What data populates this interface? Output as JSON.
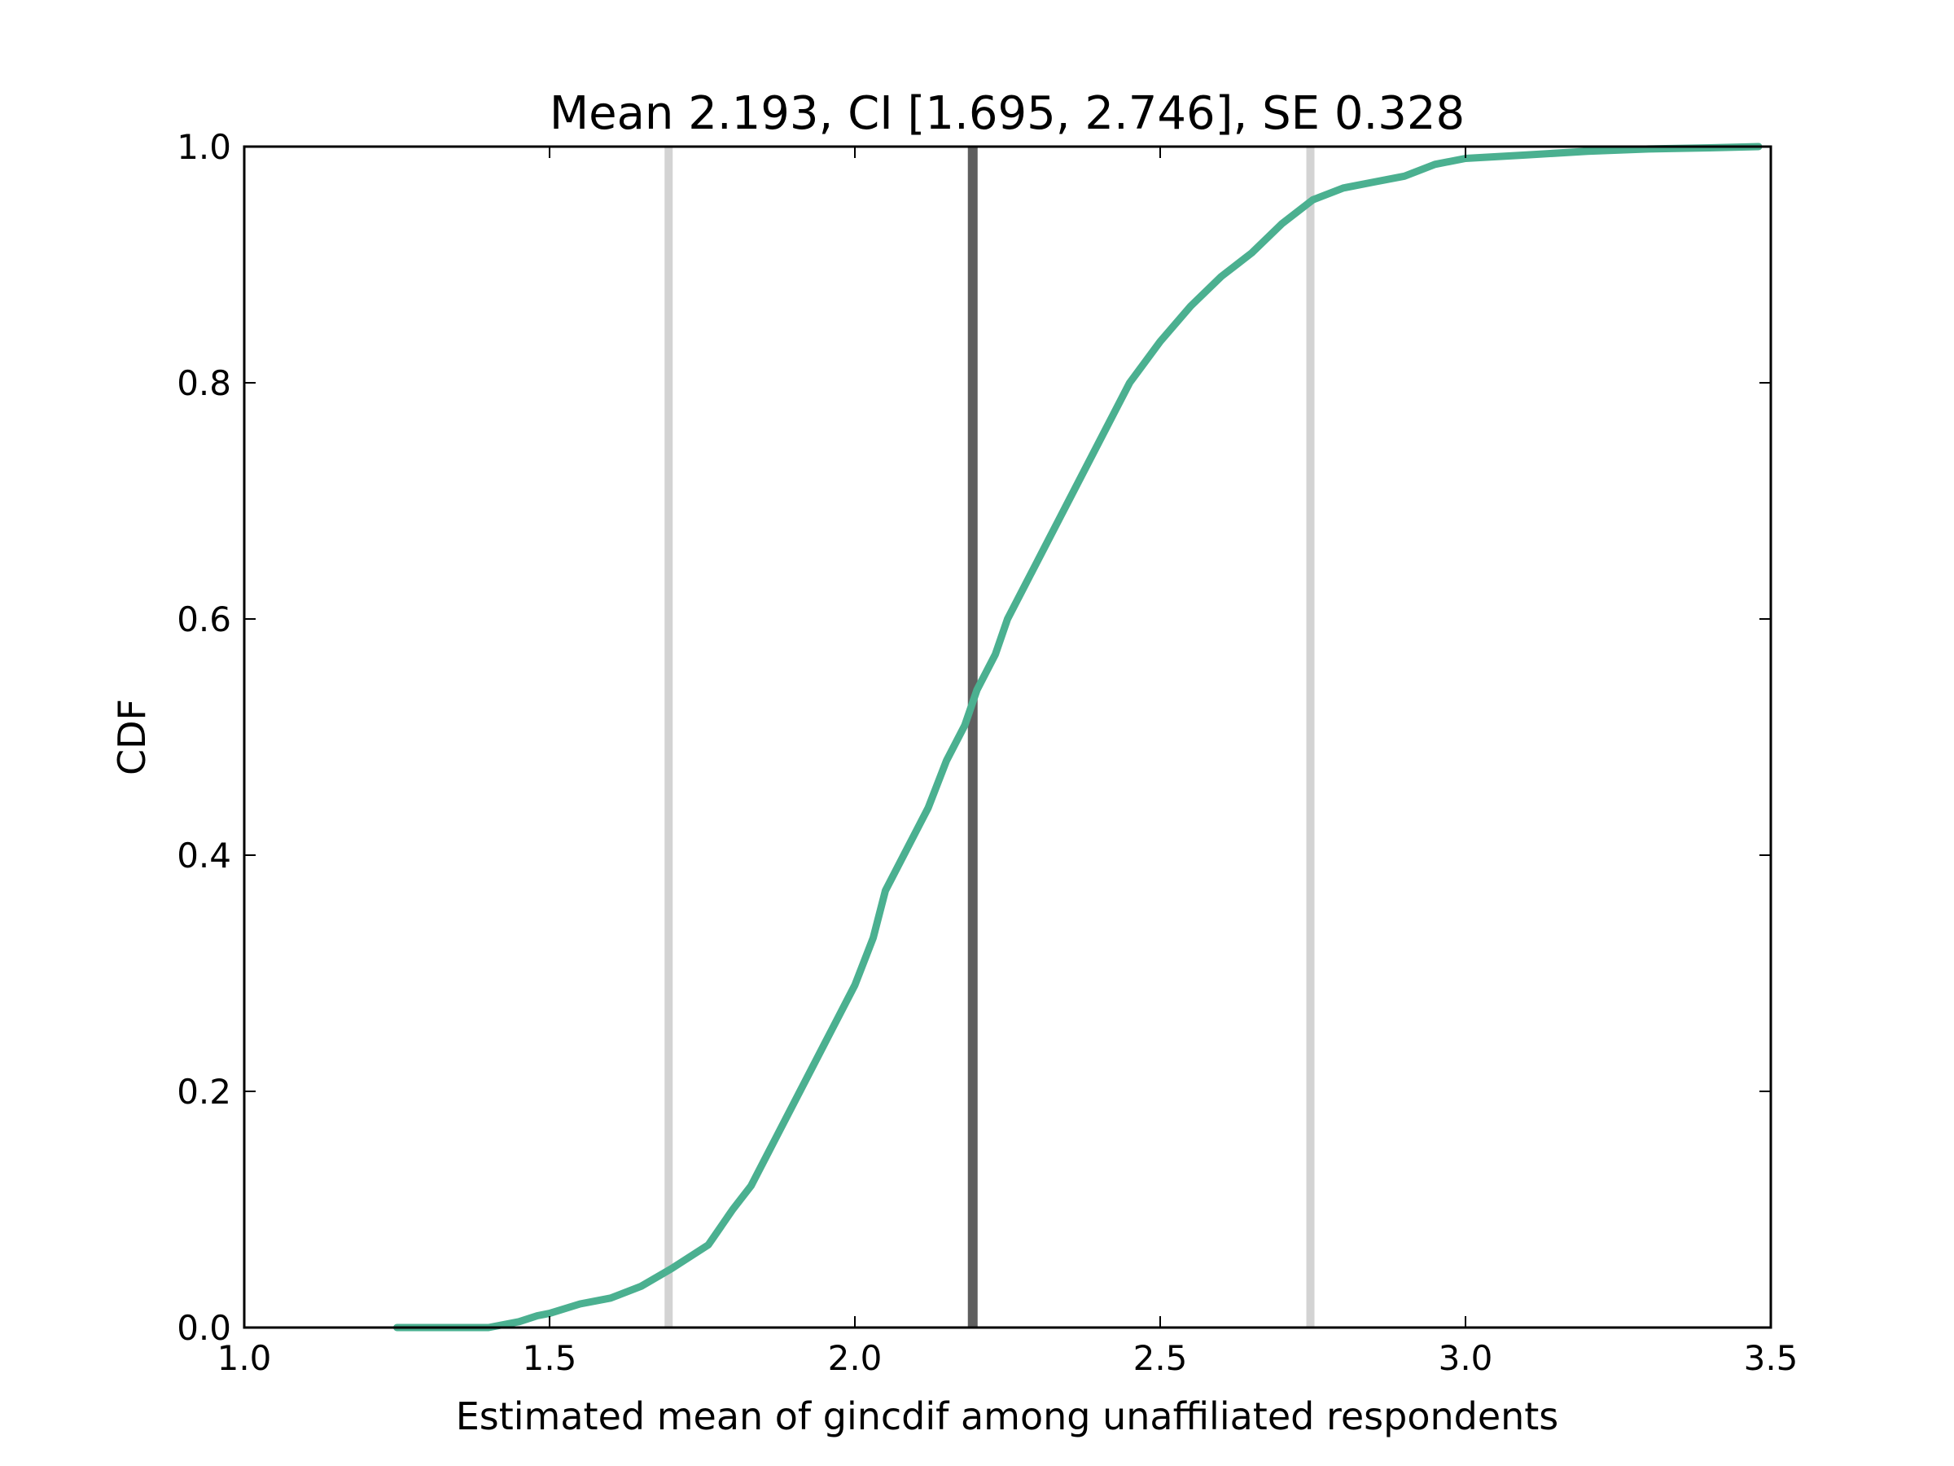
{
  "chart_data": {
    "type": "line",
    "title": "Mean 2.193, CI [1.695, 2.746], SE 0.328",
    "xlabel": "Estimated mean of gincdif among unaffiliated respondents",
    "ylabel": "CDF",
    "xlim": [
      1.0,
      3.5
    ],
    "ylim": [
      0.0,
      1.0
    ],
    "xticks": [
      "1.0",
      "1.5",
      "2.0",
      "2.5",
      "3.0",
      "3.5"
    ],
    "yticks": [
      "0.0",
      "0.2",
      "0.4",
      "0.6",
      "0.8",
      "1.0"
    ],
    "grid": false,
    "legend": "none",
    "reference_lines": [
      {
        "x": 1.695,
        "role": "ci-lower",
        "color": "#d3d3d3"
      },
      {
        "x": 2.193,
        "role": "mean",
        "color": "#5f5f5f"
      },
      {
        "x": 2.746,
        "role": "ci-upper",
        "color": "#d3d3d3"
      }
    ],
    "series": [
      {
        "color": "#4bb090",
        "x": [
          1.25,
          1.3,
          1.35,
          1.4,
          1.45,
          1.48,
          1.5,
          1.55,
          1.6,
          1.65,
          1.7,
          1.73,
          1.76,
          1.78,
          1.8,
          1.83,
          1.86,
          1.9,
          1.95,
          2.0,
          2.03,
          2.05,
          2.08,
          2.12,
          2.15,
          2.18,
          2.2,
          2.23,
          2.25,
          2.28,
          2.32,
          2.35,
          2.4,
          2.45,
          2.5,
          2.55,
          2.6,
          2.65,
          2.7,
          2.75,
          2.8,
          2.85,
          2.9,
          2.95,
          3.0,
          3.1,
          3.2,
          3.3,
          3.4,
          3.48
        ],
        "y": [
          0.0,
          0.0,
          0.0,
          0.0,
          0.005,
          0.01,
          0.012,
          0.02,
          0.025,
          0.035,
          0.05,
          0.06,
          0.07,
          0.085,
          0.1,
          0.12,
          0.15,
          0.19,
          0.24,
          0.29,
          0.33,
          0.37,
          0.4,
          0.44,
          0.48,
          0.51,
          0.54,
          0.57,
          0.6,
          0.63,
          0.67,
          0.7,
          0.75,
          0.8,
          0.835,
          0.865,
          0.89,
          0.91,
          0.935,
          0.955,
          0.965,
          0.97,
          0.975,
          0.985,
          0.99,
          0.993,
          0.996,
          0.998,
          0.999,
          1.0
        ]
      }
    ]
  }
}
